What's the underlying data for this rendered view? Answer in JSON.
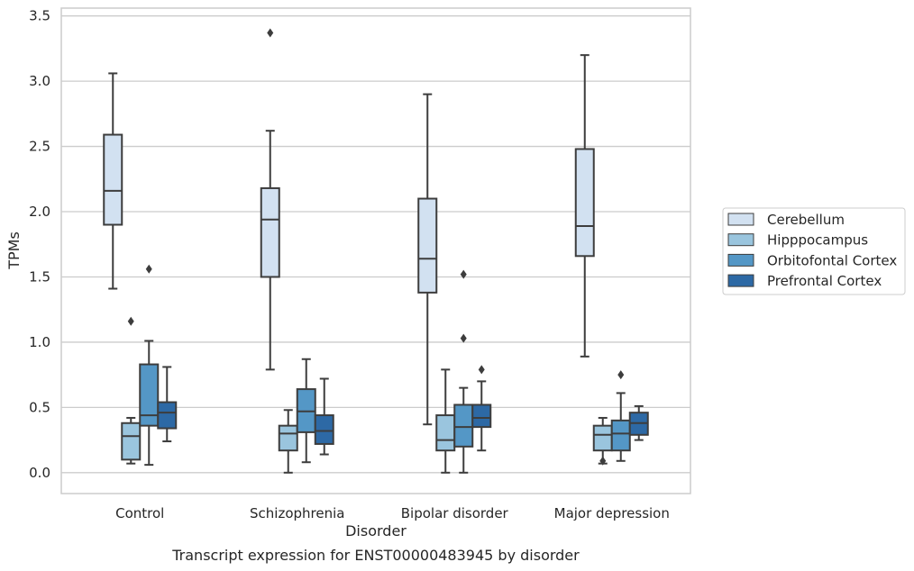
{
  "caption": "Transcript expression for ENST00000483945 by disorder",
  "chart_data": {
    "type": "box",
    "xlabel": "Disorder",
    "ylabel": "TPMs",
    "ylim": [
      -0.16,
      3.56
    ],
    "yticks": [
      0.0,
      0.5,
      1.0,
      1.5,
      2.0,
      2.5,
      3.0,
      3.5
    ],
    "ytick_labels": [
      "0.0",
      "0.5",
      "1.0",
      "1.5",
      "2.0",
      "2.5",
      "3.0",
      "3.5"
    ],
    "grid": "horizontal",
    "legend_placement": "center-right outside",
    "categories": [
      "Control",
      "Schizophrenia",
      "Bipolar disorder",
      "Major depression"
    ],
    "series": [
      {
        "name": "Cerebellum",
        "color": "#d2e1f1",
        "boxes": [
          {
            "whislo": 1.41,
            "q1": 1.9,
            "med": 2.16,
            "q3": 2.59,
            "whishi": 3.06,
            "fliers": []
          },
          {
            "whislo": 0.79,
            "q1": 1.5,
            "med": 1.94,
            "q3": 2.18,
            "whishi": 2.62,
            "fliers": [
              3.37
            ]
          },
          {
            "whislo": 0.37,
            "q1": 1.38,
            "med": 1.64,
            "q3": 2.1,
            "whishi": 2.9,
            "fliers": []
          },
          {
            "whislo": 0.89,
            "q1": 1.66,
            "med": 1.89,
            "q3": 2.48,
            "whishi": 3.2,
            "fliers": []
          }
        ]
      },
      {
        "name": "Hipppocampus",
        "color": "#9ac5de",
        "boxes": [
          {
            "whislo": 0.07,
            "q1": 0.1,
            "med": 0.28,
            "q3": 0.38,
            "whishi": 0.42,
            "fliers": [
              1.16
            ]
          },
          {
            "whislo": 0.0,
            "q1": 0.17,
            "med": 0.3,
            "q3": 0.36,
            "whishi": 0.48,
            "fliers": []
          },
          {
            "whislo": 0.0,
            "q1": 0.17,
            "med": 0.25,
            "q3": 0.44,
            "whishi": 0.79,
            "fliers": []
          },
          {
            "whislo": 0.07,
            "q1": 0.17,
            "med": 0.29,
            "q3": 0.36,
            "whishi": 0.42,
            "fliers": [
              0.09
            ]
          }
        ]
      },
      {
        "name": "Orbitofontal Cortex",
        "color": "#5497c6",
        "boxes": [
          {
            "whislo": 0.06,
            "q1": 0.36,
            "med": 0.44,
            "q3": 0.83,
            "whishi": 1.01,
            "fliers": [
              1.56
            ]
          },
          {
            "whislo": 0.08,
            "q1": 0.31,
            "med": 0.47,
            "q3": 0.64,
            "whishi": 0.87,
            "fliers": []
          },
          {
            "whislo": 0.0,
            "q1": 0.2,
            "med": 0.35,
            "q3": 0.52,
            "whishi": 0.65,
            "fliers": [
              1.03,
              1.52
            ]
          },
          {
            "whislo": 0.09,
            "q1": 0.17,
            "med": 0.3,
            "q3": 0.4,
            "whishi": 0.61,
            "fliers": [
              0.75
            ]
          }
        ]
      },
      {
        "name": "Prefrontal Cortex",
        "color": "#2d69a5",
        "boxes": [
          {
            "whislo": 0.24,
            "q1": 0.34,
            "med": 0.46,
            "q3": 0.54,
            "whishi": 0.81,
            "fliers": []
          },
          {
            "whislo": 0.14,
            "q1": 0.22,
            "med": 0.32,
            "q3": 0.44,
            "whishi": 0.72,
            "fliers": []
          },
          {
            "whislo": 0.17,
            "q1": 0.35,
            "med": 0.42,
            "q3": 0.52,
            "whishi": 0.7,
            "fliers": [
              0.79
            ]
          },
          {
            "whislo": 0.25,
            "q1": 0.29,
            "med": 0.38,
            "q3": 0.46,
            "whishi": 0.51,
            "fliers": []
          }
        ]
      }
    ]
  }
}
